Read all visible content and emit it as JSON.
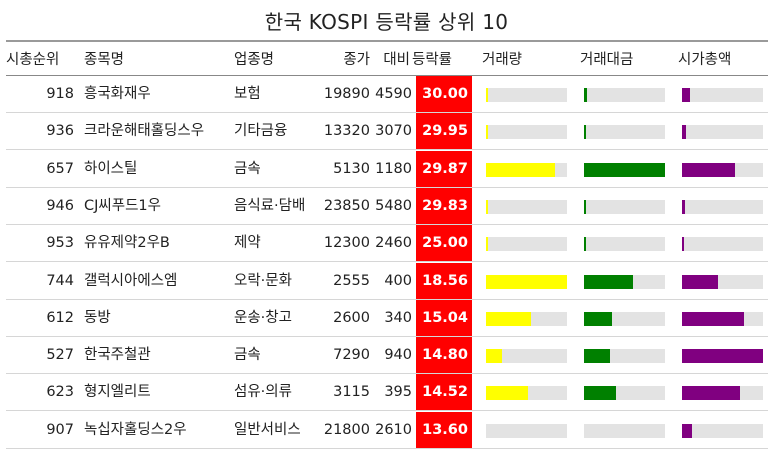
{
  "chart_data": {
    "type": "table",
    "title": "한국 KOSPI 등락률 상위 10",
    "columns": [
      "시총순위",
      "종목명",
      "업종명",
      "종가",
      "대비",
      "등락률",
      "거래량",
      "거래대금",
      "시가총액"
    ],
    "bar_colors": {
      "volume": "#ffff00",
      "amount": "#008000",
      "market_cap": "#800080",
      "track": "#e3e3e3",
      "change_bg": "#ff0000"
    },
    "rows": [
      {
        "rank": "918",
        "name": "흥국화재우",
        "sector": "보험",
        "close": "19890",
        "diff": "4590",
        "change": "30.00",
        "volume": 0.02,
        "amount": 0.04,
        "market_cap": 0.1
      },
      {
        "rank": "936",
        "name": "크라운해태홀딩스우",
        "sector": "기타금융",
        "close": "13320",
        "diff": "3070",
        "change": "29.95",
        "volume": 0.02,
        "amount": 0.02,
        "market_cap": 0.05
      },
      {
        "rank": "657",
        "name": "하이스틸",
        "sector": "금속",
        "close": "5130",
        "diff": "1180",
        "change": "29.87",
        "volume": 0.85,
        "amount": 1.0,
        "market_cap": 0.65
      },
      {
        "rank": "946",
        "name": "CJ씨푸드1우",
        "sector": "음식료·담배",
        "close": "23850",
        "diff": "5480",
        "change": "29.83",
        "volume": 0.01,
        "amount": 0.02,
        "market_cap": 0.04
      },
      {
        "rank": "953",
        "name": "유유제약2우B",
        "sector": "제약",
        "close": "12300",
        "diff": "2460",
        "change": "25.00",
        "volume": 0.02,
        "amount": 0.01,
        "market_cap": 0.03
      },
      {
        "rank": "744",
        "name": "갤럭시아에스엠",
        "sector": "오락·문화",
        "close": "2555",
        "diff": "400",
        "change": "18.56",
        "volume": 1.0,
        "amount": 0.61,
        "market_cap": 0.44
      },
      {
        "rank": "612",
        "name": "동방",
        "sector": "운송·창고",
        "close": "2600",
        "diff": "340",
        "change": "15.04",
        "volume": 0.55,
        "amount": 0.35,
        "market_cap": 0.76
      },
      {
        "rank": "527",
        "name": "한국주철관",
        "sector": "금속",
        "close": "7290",
        "diff": "940",
        "change": "14.80",
        "volume": 0.2,
        "amount": 0.32,
        "market_cap": 1.0
      },
      {
        "rank": "623",
        "name": "형지엘리트",
        "sector": "섬유·의류",
        "close": "3115",
        "diff": "395",
        "change": "14.52",
        "volume": 0.52,
        "amount": 0.4,
        "market_cap": 0.72
      },
      {
        "rank": "907",
        "name": "녹십자홀딩스2우",
        "sector": "일반서비스",
        "close": "21800",
        "diff": "2610",
        "change": "13.60",
        "volume": 0.0,
        "amount": 0.0,
        "market_cap": 0.12
      }
    ]
  }
}
